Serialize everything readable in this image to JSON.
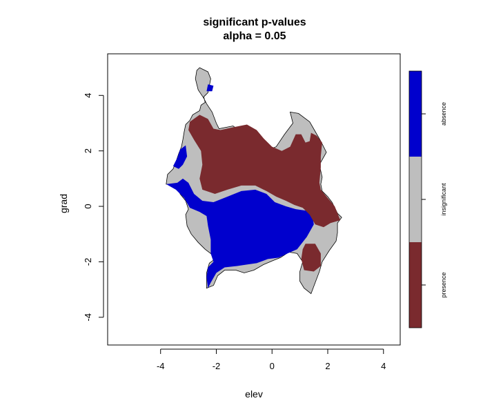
{
  "chart_data": {
    "type": "heatmap",
    "title": "significant p-values",
    "subtitle": "alpha = 0.05",
    "xlabel": "elev",
    "ylabel": "grad",
    "xlim": [
      -5.9,
      4.6
    ],
    "ylim": [
      -5.0,
      5.5
    ],
    "x_ticks": [
      -4,
      -2,
      0,
      2,
      4
    ],
    "y_ticks": [
      -4,
      -2,
      0,
      2,
      4
    ],
    "grid": false,
    "legend_placement": "right",
    "categories": [
      {
        "key": "absence",
        "label": "absence",
        "color": "#0000CD"
      },
      {
        "key": "insignificant",
        "label": "insignificant",
        "color": "#BEBEBE"
      },
      {
        "key": "presence",
        "label": "presence",
        "color": "#7A2A2E"
      }
    ],
    "regions": [
      {
        "category": "insignificant",
        "outline": true,
        "points": [
          [
            -2.6,
            5.0
          ],
          [
            -2.3,
            4.85
          ],
          [
            -2.2,
            4.6
          ],
          [
            -2.25,
            4.35
          ],
          [
            -2.3,
            4.1
          ],
          [
            -2.45,
            3.95
          ],
          [
            -2.4,
            3.75
          ],
          [
            -2.55,
            3.65
          ],
          [
            -2.6,
            3.45
          ],
          [
            -2.85,
            3.3
          ],
          [
            -2.95,
            3.1
          ],
          [
            -3.1,
            2.95
          ],
          [
            -3.15,
            2.7
          ],
          [
            -3.2,
            2.4
          ],
          [
            -3.25,
            2.15
          ],
          [
            -3.35,
            1.9
          ],
          [
            -3.45,
            1.6
          ],
          [
            -3.55,
            1.35
          ],
          [
            -3.75,
            1.15
          ],
          [
            -3.8,
            0.8
          ],
          [
            -3.4,
            0.75
          ],
          [
            -3.3,
            0.45
          ],
          [
            -3.1,
            0.2
          ],
          [
            -3.0,
            -0.1
          ],
          [
            -3.1,
            -0.3
          ],
          [
            -3.05,
            -0.7
          ],
          [
            -2.9,
            -1.0
          ],
          [
            -2.65,
            -1.3
          ],
          [
            -2.4,
            -1.55
          ],
          [
            -2.2,
            -1.7
          ],
          [
            -2.05,
            -1.9
          ],
          [
            -2.25,
            -2.05
          ],
          [
            -2.35,
            -2.4
          ],
          [
            -2.35,
            -2.95
          ],
          [
            -2.1,
            -2.85
          ],
          [
            -1.95,
            -2.5
          ],
          [
            -1.7,
            -2.3
          ],
          [
            -1.3,
            -2.3
          ],
          [
            -1.0,
            -2.4
          ],
          [
            -0.65,
            -2.3
          ],
          [
            -0.3,
            -2.1
          ],
          [
            0.05,
            -1.95
          ],
          [
            0.3,
            -1.85
          ],
          [
            0.6,
            -1.65
          ],
          [
            0.9,
            -1.7
          ],
          [
            1.1,
            -2.0
          ],
          [
            1.0,
            -2.35
          ],
          [
            1.0,
            -2.7
          ],
          [
            1.15,
            -2.95
          ],
          [
            1.4,
            -3.15
          ],
          [
            1.55,
            -2.75
          ],
          [
            1.7,
            -2.35
          ],
          [
            1.8,
            -2.0
          ],
          [
            2.05,
            -1.6
          ],
          [
            2.3,
            -1.25
          ],
          [
            2.35,
            -0.95
          ],
          [
            2.35,
            -0.6
          ],
          [
            2.5,
            -0.4
          ],
          [
            2.35,
            -0.25
          ],
          [
            2.15,
            0.15
          ],
          [
            2.0,
            0.35
          ],
          [
            1.8,
            0.55
          ],
          [
            1.75,
            0.8
          ],
          [
            1.8,
            1.05
          ],
          [
            1.7,
            1.5
          ],
          [
            1.95,
            1.95
          ],
          [
            1.75,
            2.35
          ],
          [
            1.55,
            2.7
          ],
          [
            1.35,
            3.05
          ],
          [
            0.95,
            3.35
          ],
          [
            0.65,
            3.4
          ],
          [
            0.75,
            3.0
          ],
          [
            0.45,
            2.6
          ],
          [
            0.15,
            2.15
          ],
          [
            -0.1,
            2.05
          ],
          [
            -0.45,
            2.1
          ],
          [
            -0.9,
            2.55
          ],
          [
            -1.4,
            2.9
          ],
          [
            -1.9,
            2.8
          ],
          [
            -2.0,
            3.0
          ],
          [
            -2.15,
            3.4
          ],
          [
            -2.35,
            3.7
          ],
          [
            -2.45,
            3.9
          ],
          [
            -2.65,
            4.2
          ],
          [
            -2.75,
            4.6
          ],
          [
            -2.7,
            4.9
          ]
        ]
      },
      {
        "category": "absence",
        "outline": false,
        "points": [
          [
            -2.3,
            4.4
          ],
          [
            -2.1,
            4.35
          ],
          [
            -2.15,
            4.15
          ],
          [
            -2.35,
            4.15
          ]
        ]
      },
      {
        "category": "absence",
        "outline": false,
        "points": [
          [
            -3.1,
            2.2
          ],
          [
            -3.05,
            1.8
          ],
          [
            -3.2,
            1.5
          ],
          [
            -3.35,
            1.35
          ],
          [
            -3.55,
            1.45
          ],
          [
            -3.4,
            1.75
          ],
          [
            -3.3,
            2.05
          ]
        ]
      },
      {
        "category": "absence",
        "outline": false,
        "points": [
          [
            -3.8,
            0.8
          ],
          [
            -3.4,
            0.85
          ],
          [
            -3.2,
            1.0
          ],
          [
            -3.0,
            0.85
          ],
          [
            -2.8,
            0.45
          ],
          [
            -2.5,
            0.2
          ],
          [
            -2.1,
            0.15
          ],
          [
            -1.6,
            0.35
          ],
          [
            -1.1,
            0.55
          ],
          [
            -0.6,
            0.6
          ],
          [
            -0.2,
            0.45
          ],
          [
            0.1,
            0.15
          ],
          [
            0.5,
            0.0
          ],
          [
            0.85,
            -0.1
          ],
          [
            1.2,
            -0.15
          ],
          [
            1.45,
            -0.3
          ],
          [
            1.5,
            -0.65
          ],
          [
            1.25,
            -1.1
          ],
          [
            0.9,
            -1.55
          ],
          [
            0.55,
            -1.7
          ],
          [
            0.25,
            -1.85
          ],
          [
            -0.15,
            -1.9
          ],
          [
            -0.55,
            -2.05
          ],
          [
            -0.9,
            -2.1
          ],
          [
            -1.25,
            -2.15
          ],
          [
            -1.7,
            -2.2
          ],
          [
            -2.0,
            -2.4
          ],
          [
            -2.2,
            -2.75
          ],
          [
            -2.3,
            -2.95
          ],
          [
            -2.35,
            -2.55
          ],
          [
            -2.3,
            -2.2
          ],
          [
            -2.1,
            -2.0
          ],
          [
            -2.2,
            -1.7
          ],
          [
            -2.2,
            -1.2
          ],
          [
            -2.3,
            -0.7
          ],
          [
            -2.35,
            -0.35
          ],
          [
            -2.6,
            -0.2
          ],
          [
            -2.95,
            -0.05
          ],
          [
            -3.15,
            0.3
          ],
          [
            -3.45,
            0.6
          ]
        ]
      },
      {
        "category": "presence",
        "outline": false,
        "points": [
          [
            -2.95,
            3.05
          ],
          [
            -2.6,
            3.3
          ],
          [
            -2.3,
            3.15
          ],
          [
            -2.1,
            2.8
          ],
          [
            -1.85,
            2.75
          ],
          [
            -1.4,
            2.85
          ],
          [
            -0.9,
            2.95
          ],
          [
            -0.55,
            2.75
          ],
          [
            -0.3,
            2.45
          ],
          [
            0.0,
            2.15
          ],
          [
            0.35,
            2.0
          ],
          [
            0.65,
            2.15
          ],
          [
            0.85,
            2.6
          ],
          [
            1.05,
            2.6
          ],
          [
            1.2,
            2.3
          ],
          [
            1.35,
            2.35
          ],
          [
            1.4,
            2.65
          ],
          [
            1.6,
            2.55
          ],
          [
            1.8,
            2.3
          ],
          [
            1.75,
            1.8
          ],
          [
            1.75,
            1.4
          ],
          [
            1.7,
            0.85
          ],
          [
            1.75,
            0.6
          ],
          [
            2.0,
            0.3
          ],
          [
            2.25,
            0.0
          ],
          [
            2.45,
            -0.5
          ],
          [
            2.1,
            -0.6
          ],
          [
            1.85,
            -0.75
          ],
          [
            1.55,
            -0.65
          ],
          [
            1.35,
            -0.3
          ],
          [
            1.1,
            -0.05
          ],
          [
            0.8,
            0.05
          ],
          [
            0.5,
            0.2
          ],
          [
            0.15,
            0.35
          ],
          [
            -0.2,
            0.55
          ],
          [
            -0.6,
            0.75
          ],
          [
            -1.1,
            0.75
          ],
          [
            -1.6,
            0.6
          ],
          [
            -2.05,
            0.45
          ],
          [
            -2.5,
            0.6
          ],
          [
            -2.6,
            1.0
          ],
          [
            -2.5,
            1.5
          ],
          [
            -2.55,
            2.0
          ],
          [
            -2.8,
            2.4
          ],
          [
            -3.0,
            2.75
          ]
        ]
      },
      {
        "category": "presence",
        "outline": false,
        "points": [
          [
            1.2,
            -1.35
          ],
          [
            1.55,
            -1.35
          ],
          [
            1.75,
            -1.7
          ],
          [
            1.75,
            -2.15
          ],
          [
            1.5,
            -2.35
          ],
          [
            1.15,
            -2.3
          ],
          [
            1.05,
            -1.9
          ],
          [
            1.1,
            -1.55
          ]
        ]
      }
    ]
  }
}
